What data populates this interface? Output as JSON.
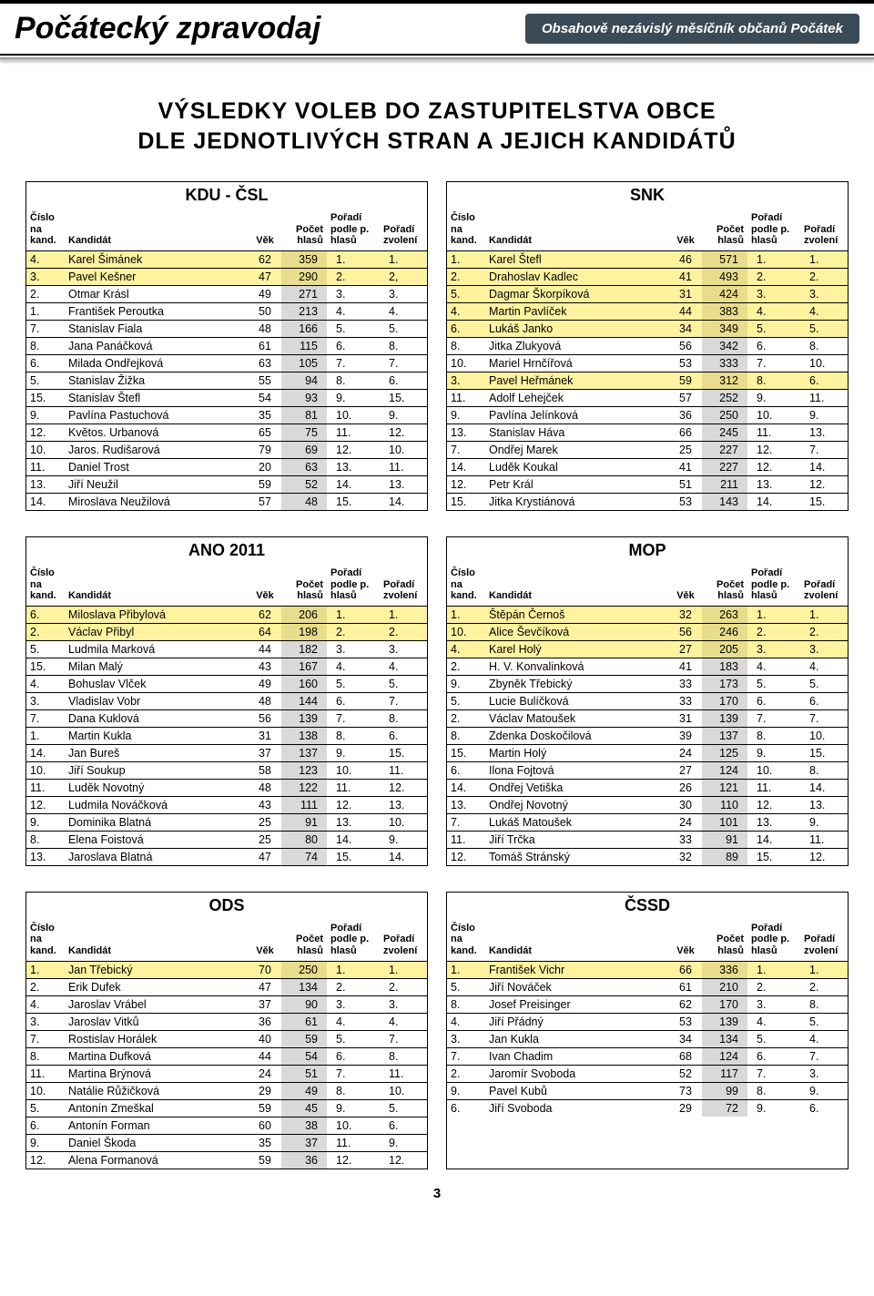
{
  "masthead": {
    "title": "Počátecký zpravodaj",
    "tagline": "Obsahově nezávislý měsíčník občanů Počátek"
  },
  "headline_l1": "VÝSLEDKY VOLEB DO ZASTUPITELSTVA OBCE",
  "headline_l2": "DLE JEDNOTLIVÝCH STRAN A JEJICH KANDIDÁTŮ",
  "columns": {
    "cislo": "Číslo na kand.",
    "kandidat": "Kandidát",
    "vek": "Věk",
    "pocet": "Počet hlasů",
    "poradi_h": "Pořadí podle p. hlasů",
    "poradi_z": "Pořadí zvolení"
  },
  "page_number": "3",
  "parties": [
    {
      "name": "KDU - ČSL",
      "rows": [
        {
          "hl": 1,
          "n": "4.",
          "k": "Karel Šimánek",
          "v": "62",
          "h": "359",
          "ph": "1.",
          "pz": "1."
        },
        {
          "hl": 1,
          "n": "3.",
          "k": "Pavel Kešner",
          "v": "47",
          "h": "290",
          "ph": "2.",
          "pz": "2,"
        },
        {
          "hl": 0,
          "n": "2.",
          "k": "Otmar Krásl",
          "v": "49",
          "h": "271",
          "ph": "3.",
          "pz": "3."
        },
        {
          "hl": 0,
          "n": "1.",
          "k": "František Peroutka",
          "v": "50",
          "h": "213",
          "ph": "4.",
          "pz": "4."
        },
        {
          "hl": 0,
          "n": "7.",
          "k": "Stanislav Fiala",
          "v": "48",
          "h": "166",
          "ph": "5.",
          "pz": "5."
        },
        {
          "hl": 0,
          "n": "8.",
          "k": "Jana Panáčková",
          "v": "61",
          "h": "115",
          "ph": "6.",
          "pz": "8."
        },
        {
          "hl": 0,
          "n": "6.",
          "k": "Milada Ondřejková",
          "v": "63",
          "h": "105",
          "ph": "7.",
          "pz": "7."
        },
        {
          "hl": 0,
          "n": "5.",
          "k": "Stanislav Žižka",
          "v": "55",
          "h": "94",
          "ph": "8.",
          "pz": "6."
        },
        {
          "hl": 0,
          "n": "15.",
          "k": "Stanislav Štefl",
          "v": "54",
          "h": "93",
          "ph": "9.",
          "pz": "15."
        },
        {
          "hl": 0,
          "n": "9.",
          "k": "Pavlína Pastuchová",
          "v": "35",
          "h": "81",
          "ph": "10.",
          "pz": "9."
        },
        {
          "hl": 0,
          "n": "12.",
          "k": "Květos. Urbanová",
          "v": "65",
          "h": "75",
          "ph": "11.",
          "pz": "12."
        },
        {
          "hl": 0,
          "n": "10.",
          "k": "Jaros. Rudišarová",
          "v": "79",
          "h": "69",
          "ph": "12.",
          "pz": "10."
        },
        {
          "hl": 0,
          "n": "11.",
          "k": "Daniel Trost",
          "v": "20",
          "h": "63",
          "ph": "13.",
          "pz": "11."
        },
        {
          "hl": 0,
          "n": "13.",
          "k": "Jiří Neužil",
          "v": "59",
          "h": "52",
          "ph": "14.",
          "pz": "13."
        },
        {
          "hl": 0,
          "n": "14.",
          "k": "Miroslava Neužilová",
          "v": "57",
          "h": "48",
          "ph": "15.",
          "pz": "14."
        }
      ]
    },
    {
      "name": "SNK",
      "rows": [
        {
          "hl": 1,
          "n": "1.",
          "k": "Karel Štefl",
          "v": "46",
          "h": "571",
          "ph": "1.",
          "pz": "1."
        },
        {
          "hl": 1,
          "n": "2.",
          "k": "Drahoslav Kadlec",
          "v": "41",
          "h": "493",
          "ph": "2.",
          "pz": "2."
        },
        {
          "hl": 1,
          "n": "5.",
          "k": "Dagmar Škorpíková",
          "v": "31",
          "h": "424",
          "ph": "3.",
          "pz": "3."
        },
        {
          "hl": 1,
          "n": "4.",
          "k": "Martin Pavlíček",
          "v": "44",
          "h": "383",
          "ph": "4.",
          "pz": "4."
        },
        {
          "hl": 1,
          "n": "6.",
          "k": "Lukáš Janko",
          "v": "34",
          "h": "349",
          "ph": "5.",
          "pz": "5."
        },
        {
          "hl": 0,
          "n": "8.",
          "k": "Jitka Zlukyová",
          "v": "56",
          "h": "342",
          "ph": "6.",
          "pz": "8."
        },
        {
          "hl": 0,
          "n": "10.",
          "k": "Mariel Hrnčířová",
          "v": "53",
          "h": "333",
          "ph": "7.",
          "pz": "10."
        },
        {
          "hl": 1,
          "n": "3.",
          "k": "Pavel Heřmánek",
          "v": "59",
          "h": "312",
          "ph": "8.",
          "pz": "6."
        },
        {
          "hl": 0,
          "n": "11.",
          "k": "Adolf Lehejček",
          "v": "57",
          "h": "252",
          "ph": "9.",
          "pz": "11."
        },
        {
          "hl": 0,
          "n": "9.",
          "k": "Pavlína Jelínková",
          "v": "36",
          "h": "250",
          "ph": "10.",
          "pz": "9."
        },
        {
          "hl": 0,
          "n": "13.",
          "k": "Stanislav Háva",
          "v": "66",
          "h": "245",
          "ph": "11.",
          "pz": "13."
        },
        {
          "hl": 0,
          "n": "7.",
          "k": "Ondřej Marek",
          "v": "25",
          "h": "227",
          "ph": "12.",
          "pz": "7."
        },
        {
          "hl": 0,
          "n": "14.",
          "k": "Luděk Koukal",
          "v": "41",
          "h": "227",
          "ph": "12.",
          "pz": "14."
        },
        {
          "hl": 0,
          "n": "12.",
          "k": "Petr Král",
          "v": "51",
          "h": "211",
          "ph": "13.",
          "pz": "12."
        },
        {
          "hl": 0,
          "n": "15.",
          "k": "Jitka Krystiánová",
          "v": "53",
          "h": "143",
          "ph": "14.",
          "pz": "15."
        }
      ]
    },
    {
      "name": "ANO 2011",
      "rows": [
        {
          "hl": 1,
          "n": "6.",
          "k": "Miloslava Přibylová",
          "v": "62",
          "h": "206",
          "ph": "1.",
          "pz": "1."
        },
        {
          "hl": 1,
          "n": "2.",
          "k": "Václav Přibyl",
          "v": "64",
          "h": "198",
          "ph": "2.",
          "pz": "2."
        },
        {
          "hl": 0,
          "n": "5.",
          "k": "Ludmila Marková",
          "v": "44",
          "h": "182",
          "ph": "3.",
          "pz": "3."
        },
        {
          "hl": 0,
          "n": "15.",
          "k": "Milan Malý",
          "v": "43",
          "h": "167",
          "ph": "4.",
          "pz": "4."
        },
        {
          "hl": 0,
          "n": "4.",
          "k": "Bohuslav Vlček",
          "v": "49",
          "h": "160",
          "ph": "5.",
          "pz": "5."
        },
        {
          "hl": 0,
          "n": "3.",
          "k": "Vladislav Vobr",
          "v": "48",
          "h": "144",
          "ph": "6.",
          "pz": "7."
        },
        {
          "hl": 0,
          "n": "7.",
          "k": "Dana Kuklová",
          "v": "56",
          "h": "139",
          "ph": "7.",
          "pz": "8."
        },
        {
          "hl": 0,
          "n": "1.",
          "k": "Martin Kukla",
          "v": "31",
          "h": "138",
          "ph": "8.",
          "pz": "6."
        },
        {
          "hl": 0,
          "n": "14.",
          "k": "Jan Bureš",
          "v": "37",
          "h": "137",
          "ph": "9.",
          "pz": "15."
        },
        {
          "hl": 0,
          "n": "10.",
          "k": "Jiří Soukup",
          "v": "58",
          "h": "123",
          "ph": "10.",
          "pz": "11."
        },
        {
          "hl": 0,
          "n": "11.",
          "k": "Luděk Novotný",
          "v": "48",
          "h": "122",
          "ph": "11.",
          "pz": "12."
        },
        {
          "hl": 0,
          "n": "12.",
          "k": "Ludmila Nováčková",
          "v": "43",
          "h": "111",
          "ph": "12.",
          "pz": "13."
        },
        {
          "hl": 0,
          "n": "9.",
          "k": "Dominika Blatná",
          "v": "25",
          "h": "91",
          "ph": "13.",
          "pz": "10."
        },
        {
          "hl": 0,
          "n": "8.",
          "k": "Elena Foistová",
          "v": "25",
          "h": "80",
          "ph": "14.",
          "pz": "9."
        },
        {
          "hl": 0,
          "n": "13.",
          "k": "Jaroslava Blatná",
          "v": "47",
          "h": "74",
          "ph": "15.",
          "pz": "14."
        }
      ]
    },
    {
      "name": "MOP",
      "rows": [
        {
          "hl": 1,
          "n": "1.",
          "k": "Štěpán Černoš",
          "v": "32",
          "h": "263",
          "ph": "1.",
          "pz": "1."
        },
        {
          "hl": 1,
          "n": "10.",
          "k": "Alice Ševčíková",
          "v": "56",
          "h": "246",
          "ph": "2.",
          "pz": "2."
        },
        {
          "hl": 1,
          "n": "4.",
          "k": "Karel Holý",
          "v": "27",
          "h": "205",
          "ph": "3.",
          "pz": "3."
        },
        {
          "hl": 0,
          "n": "2.",
          "k": "H. V. Konvalinková",
          "v": "41",
          "h": "183",
          "ph": "4.",
          "pz": "4."
        },
        {
          "hl": 0,
          "n": "9.",
          "k": "Zbyněk Třebický",
          "v": "33",
          "h": "173",
          "ph": "5.",
          "pz": "5."
        },
        {
          "hl": 0,
          "n": "5.",
          "k": "Lucie Bulíčková",
          "v": "33",
          "h": "170",
          "ph": "6.",
          "pz": "6."
        },
        {
          "hl": 0,
          "n": "2.",
          "k": "Václav Matoušek",
          "v": "31",
          "h": "139",
          "ph": "7.",
          "pz": "7."
        },
        {
          "hl": 0,
          "n": "8.",
          "k": "Zdenka Doskočilová",
          "v": "39",
          "h": "137",
          "ph": "8.",
          "pz": "10."
        },
        {
          "hl": 0,
          "n": "15.",
          "k": "Martin Holý",
          "v": "24",
          "h": "125",
          "ph": "9.",
          "pz": "15."
        },
        {
          "hl": 0,
          "n": "6.",
          "k": "Ilona Fojtová",
          "v": "27",
          "h": "124",
          "ph": "10.",
          "pz": "8."
        },
        {
          "hl": 0,
          "n": "14.",
          "k": "Ondřej Vetiška",
          "v": "26",
          "h": "121",
          "ph": "11.",
          "pz": "14."
        },
        {
          "hl": 0,
          "n": "13.",
          "k": "Ondřej Novotný",
          "v": "30",
          "h": "110",
          "ph": "12.",
          "pz": "13."
        },
        {
          "hl": 0,
          "n": "7.",
          "k": "Lukáš Matoušek",
          "v": "24",
          "h": "101",
          "ph": "13.",
          "pz": "9."
        },
        {
          "hl": 0,
          "n": "11.",
          "k": "Jiří Trčka",
          "v": "33",
          "h": "91",
          "ph": "14.",
          "pz": "11."
        },
        {
          "hl": 0,
          "n": "12.",
          "k": "Tomáš Stránský",
          "v": "32",
          "h": "89",
          "ph": "15.",
          "pz": "12."
        }
      ]
    },
    {
      "name": "ODS",
      "rows": [
        {
          "hl": 1,
          "n": "1.",
          "k": "Jan Třebický",
          "v": "70",
          "h": "250",
          "ph": "1.",
          "pz": "1."
        },
        {
          "hl": 0,
          "n": "2.",
          "k": "Erik Dufek",
          "v": "47",
          "h": "134",
          "ph": "2.",
          "pz": "2."
        },
        {
          "hl": 0,
          "n": "4.",
          "k": "Jaroslav Vrábel",
          "v": "37",
          "h": "90",
          "ph": "3.",
          "pz": "3."
        },
        {
          "hl": 0,
          "n": "3.",
          "k": "Jaroslav Vitků",
          "v": "36",
          "h": "61",
          "ph": "4.",
          "pz": "4."
        },
        {
          "hl": 0,
          "n": "7.",
          "k": "Rostislav Horálek",
          "v": "40",
          "h": "59",
          "ph": "5.",
          "pz": "7."
        },
        {
          "hl": 0,
          "n": "8.",
          "k": "Martina Dufková",
          "v": "44",
          "h": "54",
          "ph": "6.",
          "pz": "8."
        },
        {
          "hl": 0,
          "n": "11.",
          "k": "Martina Brýnová",
          "v": "24",
          "h": "51",
          "ph": "7.",
          "pz": "11."
        },
        {
          "hl": 0,
          "n": "10.",
          "k": "Natálie Růžičková",
          "v": "29",
          "h": "49",
          "ph": "8.",
          "pz": "10."
        },
        {
          "hl": 0,
          "n": "5.",
          "k": "Antonín Zmeškal",
          "v": "59",
          "h": "45",
          "ph": "9.",
          "pz": "5."
        },
        {
          "hl": 0,
          "n": "6.",
          "k": "Antonín Forman",
          "v": "60",
          "h": "38",
          "ph": "10.",
          "pz": "6."
        },
        {
          "hl": 0,
          "n": "9.",
          "k": "Daniel Škoda",
          "v": "35",
          "h": "37",
          "ph": "11.",
          "pz": "9."
        },
        {
          "hl": 0,
          "n": "12.",
          "k": "Alena Formanová",
          "v": "59",
          "h": "36",
          "ph": "12.",
          "pz": "12."
        }
      ]
    },
    {
      "name": "ČSSD",
      "rows": [
        {
          "hl": 1,
          "n": "1.",
          "k": "František Vichr",
          "v": "66",
          "h": "336",
          "ph": "1.",
          "pz": "1."
        },
        {
          "hl": 0,
          "n": "5.",
          "k": "Jiří Nováček",
          "v": "61",
          "h": "210",
          "ph": "2.",
          "pz": "2."
        },
        {
          "hl": 0,
          "n": "8.",
          "k": "Josef Preisinger",
          "v": "62",
          "h": "170",
          "ph": "3.",
          "pz": "8."
        },
        {
          "hl": 0,
          "n": "4.",
          "k": "Jiří Přádný",
          "v": "53",
          "h": "139",
          "ph": "4.",
          "pz": "5."
        },
        {
          "hl": 0,
          "n": "3.",
          "k": "Jan Kukla",
          "v": "34",
          "h": "134",
          "ph": "5.",
          "pz": "4."
        },
        {
          "hl": 0,
          "n": "7.",
          "k": "Ivan Chadim",
          "v": "68",
          "h": "124",
          "ph": "6.",
          "pz": "7."
        },
        {
          "hl": 0,
          "n": "2.",
          "k": "Jaromír Svoboda",
          "v": "52",
          "h": "117",
          "ph": "7.",
          "pz": "3."
        },
        {
          "hl": 0,
          "n": "9.",
          "k": "Pavel Kubů",
          "v": "73",
          "h": "99",
          "ph": "8.",
          "pz": "9."
        },
        {
          "hl": 0,
          "n": "6.",
          "k": "Jiří Svoboda",
          "v": "29",
          "h": "72",
          "ph": "9.",
          "pz": "6."
        }
      ]
    }
  ]
}
